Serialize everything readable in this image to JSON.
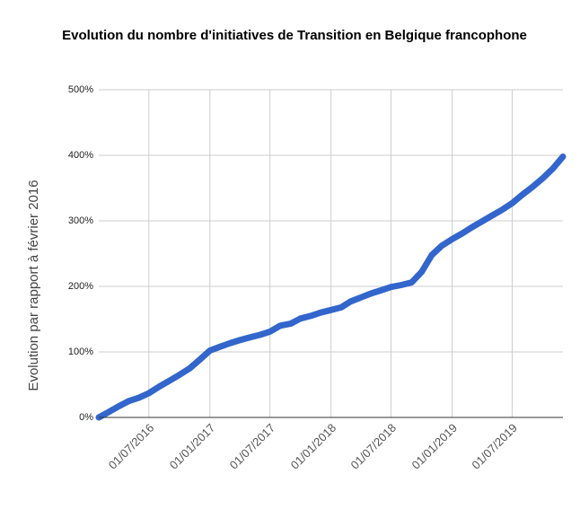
{
  "chart_data": {
    "type": "line",
    "title": "Evolution du nombre d'initiatives de Transition en Belgique francophone",
    "y_label": "Evolution par rapport à février 2016",
    "x": [
      "01/02/2016",
      "01/03/2016",
      "01/04/2016",
      "01/05/2016",
      "01/06/2016",
      "01/07/2016",
      "01/08/2016",
      "01/09/2016",
      "01/10/2016",
      "01/11/2016",
      "01/12/2016",
      "01/01/2017",
      "01/02/2017",
      "01/03/2017",
      "01/04/2017",
      "01/05/2017",
      "01/06/2017",
      "01/07/2017",
      "01/08/2017",
      "01/09/2017",
      "01/10/2017",
      "01/11/2017",
      "01/12/2017",
      "01/01/2018",
      "01/02/2018",
      "01/03/2018",
      "01/04/2018",
      "01/05/2018",
      "01/06/2018",
      "01/07/2018",
      "01/08/2018",
      "01/09/2018",
      "01/10/2018",
      "01/11/2018",
      "01/12/2018",
      "01/01/2019",
      "01/02/2019",
      "01/03/2019",
      "01/04/2019",
      "01/05/2019",
      "01/06/2019",
      "01/07/2019",
      "01/08/2019",
      "01/09/2019",
      "01/10/2019",
      "01/11/2019",
      "01/12/2019"
    ],
    "values": [
      0,
      8,
      17,
      25,
      30,
      37,
      47,
      56,
      65,
      75,
      88,
      102,
      108,
      113,
      118,
      122,
      126,
      131,
      140,
      143,
      151,
      155,
      160,
      164,
      168,
      177,
      183,
      189,
      194,
      199,
      202,
      206,
      222,
      248,
      262,
      272,
      281,
      290,
      299,
      308,
      317,
      327,
      340,
      352,
      365,
      380,
      398
    ],
    "color": "#3366cc",
    "xlim": [
      "01/02/2016",
      "01/12/2019"
    ],
    "xticks": [
      "01/07/2016",
      "01/01/2017",
      "01/07/2017",
      "01/01/2018",
      "01/07/2018",
      "01/01/2019",
      "01/07/2019"
    ],
    "ylim": [
      0,
      500
    ],
    "yticks": [
      {
        "value": 0,
        "label": "0%"
      },
      {
        "value": 100,
        "label": "100%"
      },
      {
        "value": 200,
        "label": "200%"
      },
      {
        "value": 300,
        "label": "300%"
      },
      {
        "value": 400,
        "label": "400%"
      },
      {
        "value": 500,
        "label": "500%"
      }
    ],
    "grid": true
  }
}
